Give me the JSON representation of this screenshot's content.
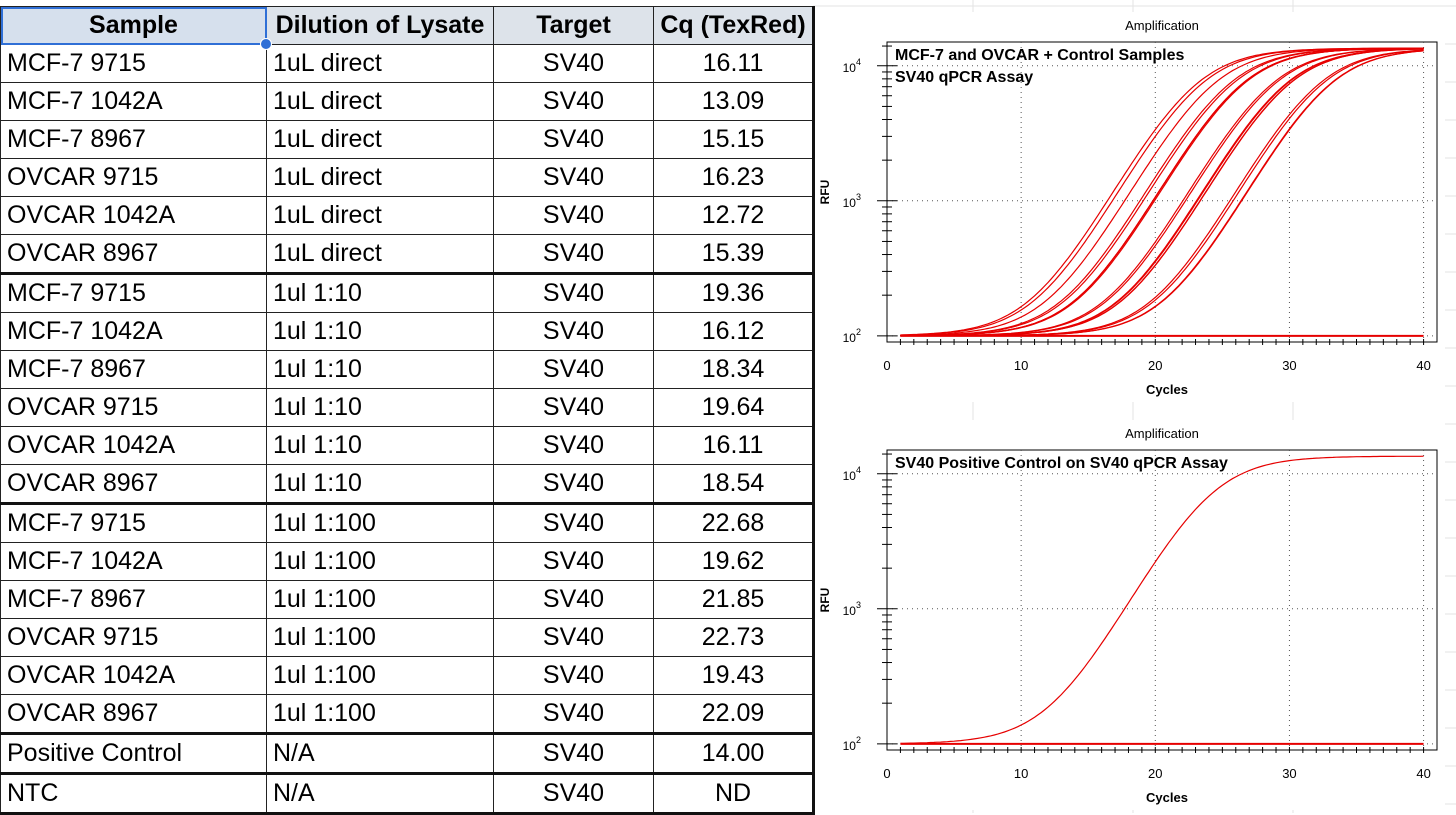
{
  "table": {
    "headers": [
      "Sample",
      "Dilution of Lysate",
      "Target",
      "Cq (TexRed)"
    ],
    "rows": [
      {
        "sample": "MCF-7 9715",
        "dilution": "1uL direct",
        "target": "SV40",
        "cq": "16.11"
      },
      {
        "sample": "MCF-7 1042A",
        "dilution": "1uL direct",
        "target": "SV40",
        "cq": "13.09"
      },
      {
        "sample": "MCF-7 8967",
        "dilution": "1uL direct",
        "target": "SV40",
        "cq": "15.15"
      },
      {
        "sample": "OVCAR 9715",
        "dilution": "1uL direct",
        "target": "SV40",
        "cq": "16.23"
      },
      {
        "sample": "OVCAR 1042A",
        "dilution": "1uL direct",
        "target": "SV40",
        "cq": "12.72"
      },
      {
        "sample": "OVCAR 8967",
        "dilution": "1uL direct",
        "target": "SV40",
        "cq": "15.39"
      },
      {
        "sample": "MCF-7 9715",
        "dilution": "1ul 1:10",
        "target": "SV40",
        "cq": "19.36"
      },
      {
        "sample": "MCF-7 1042A",
        "dilution": "1ul 1:10",
        "target": "SV40",
        "cq": "16.12"
      },
      {
        "sample": "MCF-7 8967",
        "dilution": "1ul 1:10",
        "target": "SV40",
        "cq": "18.34"
      },
      {
        "sample": "OVCAR 9715",
        "dilution": "1ul 1:10",
        "target": "SV40",
        "cq": "19.64"
      },
      {
        "sample": "OVCAR 1042A",
        "dilution": "1ul 1:10",
        "target": "SV40",
        "cq": "16.11"
      },
      {
        "sample": "OVCAR 8967",
        "dilution": "1ul 1:10",
        "target": "SV40",
        "cq": "18.54"
      },
      {
        "sample": "MCF-7 9715",
        "dilution": "1ul 1:100",
        "target": "SV40",
        "cq": "22.68"
      },
      {
        "sample": "MCF-7 1042A",
        "dilution": "1ul 1:100",
        "target": "SV40",
        "cq": "19.62"
      },
      {
        "sample": "MCF-7 8967",
        "dilution": "1ul 1:100",
        "target": "SV40",
        "cq": "21.85"
      },
      {
        "sample": "OVCAR 9715",
        "dilution": "1ul 1:100",
        "target": "SV40",
        "cq": "22.73"
      },
      {
        "sample": "OVCAR 1042A",
        "dilution": "1ul 1:100",
        "target": "SV40",
        "cq": "19.43"
      },
      {
        "sample": "OVCAR 8967",
        "dilution": "1ul 1:100",
        "target": "SV40",
        "cq": "22.09"
      },
      {
        "sample": "Positive Control",
        "dilution": "N/A",
        "target": "SV40",
        "cq": "14.00"
      },
      {
        "sample": "NTC",
        "dilution": "N/A",
        "target": "SV40",
        "cq": "ND"
      }
    ]
  },
  "colors": {
    "curve": "#e60000",
    "selection": "#2f6fd6",
    "header_bg": "#dde3ea"
  },
  "chart_data": [
    {
      "type": "line",
      "title": "Amplification",
      "annotation": [
        "MCF-7 and OVCAR + Control Samples",
        "SV40 qPCR Assay"
      ],
      "xlabel": "Cycles",
      "ylabel": "RFU",
      "xlim": [
        0,
        41
      ],
      "ylim": [
        90,
        15000
      ],
      "y_scale": "log",
      "x_ticks": [
        "0",
        "10",
        "20",
        "30",
        "40"
      ],
      "y_ticks": [
        {
          "base": "10",
          "exp": "4"
        },
        {
          "base": "10",
          "exp": "3"
        },
        {
          "base": "10",
          "exp": "2"
        }
      ],
      "grid": true,
      "baseline": 100,
      "plateau": 13500,
      "cq_threshold": 300,
      "series_cq": [
        16.11,
        13.09,
        15.15,
        16.23,
        12.72,
        15.39,
        19.36,
        16.12,
        18.34,
        19.64,
        16.11,
        18.54,
        22.68,
        19.62,
        21.85,
        22.73,
        19.43,
        22.09,
        14.0
      ]
    },
    {
      "type": "line",
      "title": "Amplification",
      "annotation": [
        "SV40 Positive Control on SV40 qPCR Assay"
      ],
      "xlabel": "Cycles",
      "ylabel": "RFU",
      "xlim": [
        0,
        41
      ],
      "ylim": [
        90,
        15000
      ],
      "y_scale": "log",
      "x_ticks": [
        "0",
        "10",
        "20",
        "30",
        "40"
      ],
      "y_ticks": [
        {
          "base": "10",
          "exp": "4"
        },
        {
          "base": "10",
          "exp": "3"
        },
        {
          "base": "10",
          "exp": "2"
        }
      ],
      "grid": true,
      "baseline": 100,
      "plateau": 13500,
      "cq_threshold": 300,
      "series_cq": [
        14.0
      ]
    }
  ]
}
